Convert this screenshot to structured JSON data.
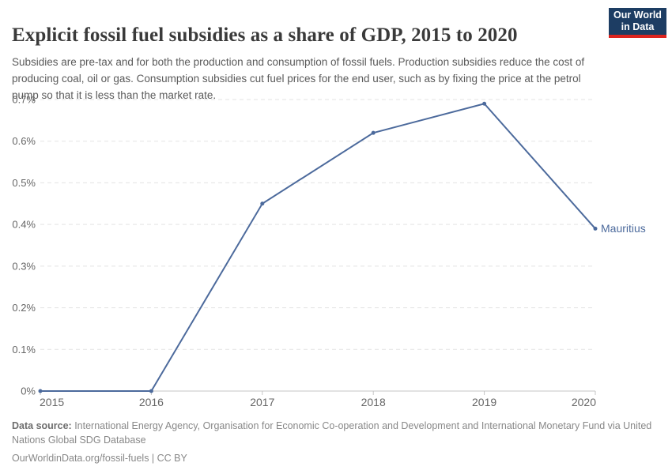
{
  "header": {
    "title": "Explicit fossil fuel subsidies as a share of GDP, 2015 to 2020",
    "subtitle": "Subsidies are pre-tax and for both the production and consumption of fossil fuels. Production subsidies reduce the cost of producing coal, oil or gas. Consumption subsidies cut fuel prices for the end user, such as by fixing the price at the petrol pump so that it is less than the market rate."
  },
  "logo": {
    "line1": "Our World",
    "line2": "in Data",
    "bg_color": "#1d3d63",
    "stripe_color": "#dc241f"
  },
  "chart_data": {
    "type": "line",
    "title": "Explicit fossil fuel subsidies as a share of GDP, 2015 to 2020",
    "x": [
      2015,
      2016,
      2017,
      2018,
      2019,
      2020
    ],
    "series": [
      {
        "name": "Mauritius",
        "values": [
          0,
          0,
          0.45,
          0.62,
          0.69,
          0.39
        ],
        "color": "#4c6a9c"
      }
    ],
    "xlabel": "",
    "ylabel": "",
    "ylim": [
      0,
      0.7
    ],
    "y_ticks": [
      0,
      0.1,
      0.2,
      0.3,
      0.4,
      0.5,
      0.6,
      0.7
    ],
    "y_tick_suffix": "%",
    "x_tick_labels": [
      "2015",
      "2016",
      "2017",
      "2018",
      "2019",
      "2020"
    ],
    "grid": "dashed horizontal",
    "legend_position": "end-of-line label",
    "end_label": "Mauritius",
    "colors": {
      "line": "#4c6a9c",
      "gridline": "#e3e3e3",
      "axis_line": "#c4c4c4",
      "tick_label": "#666666",
      "end_label": "#4c6a9c"
    }
  },
  "footer": {
    "data_source_label": "Data source:",
    "data_source_text": " International Energy Agency, Organisation for Economic Co-operation and Development and International Monetary Fund via United Nations Global SDG Database",
    "link_text": "OurWorldinData.org/fossil-fuels",
    "license_separator": " | ",
    "license_text": "CC BY"
  }
}
